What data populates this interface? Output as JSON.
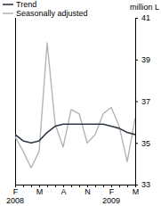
{
  "chart_data": {
    "type": "line",
    "y_label": "million L",
    "categories": [
      "F",
      null,
      null,
      "M",
      null,
      null,
      "A",
      null,
      null,
      "N",
      null,
      null,
      "F",
      null,
      null,
      "M"
    ],
    "annotations": [
      {
        "text": "2008",
        "at": 0
      },
      {
        "text": "2009",
        "at": 12
      }
    ],
    "series": [
      {
        "name": "Trend",
        "color": "#2f3a46",
        "values": [
          35.4,
          35.1,
          35.0,
          35.1,
          35.5,
          35.8,
          35.9,
          35.9,
          35.9,
          35.9,
          35.9,
          35.9,
          35.8,
          35.7,
          35.5,
          35.4
        ]
      },
      {
        "name": "Seasonally adjusted",
        "color": "#b4b4b4",
        "values": [
          35.3,
          34.6,
          33.8,
          34.6,
          39.8,
          35.9,
          34.8,
          36.6,
          36.4,
          35.0,
          35.4,
          36.4,
          36.7,
          35.8,
          34.1,
          36.2
        ]
      }
    ],
    "ylim": [
      33,
      41
    ],
    "yticks": [
      33,
      35,
      37,
      39,
      41
    ],
    "legend": "top-left",
    "grid": false
  }
}
